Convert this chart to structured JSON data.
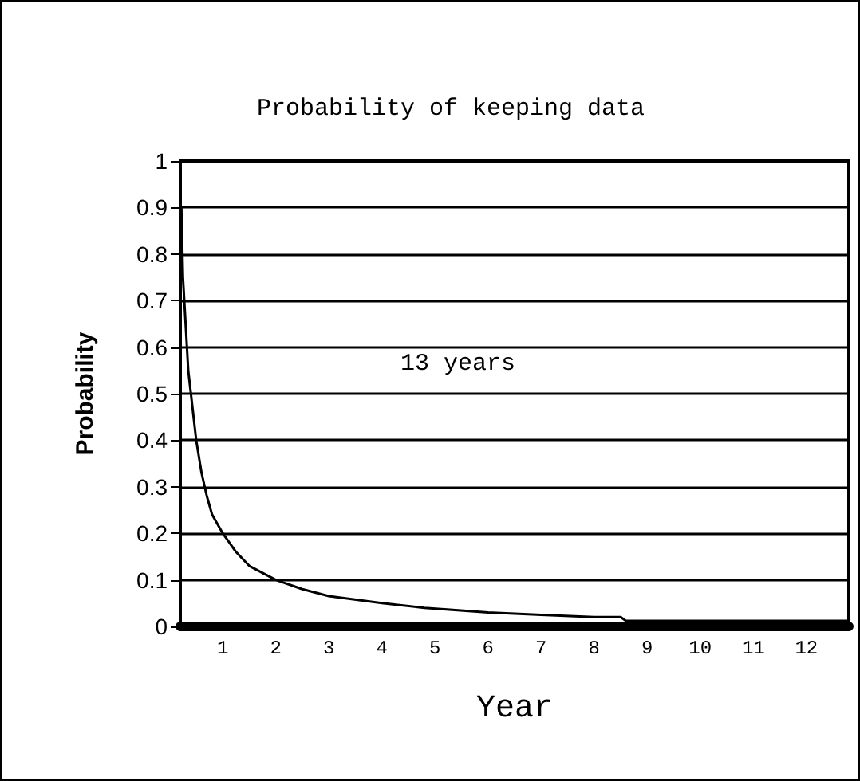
{
  "chart_data": {
    "type": "line",
    "title": "Probability of keeping data",
    "xlabel": "Year",
    "ylabel": "Probability",
    "annotations": [
      "13 years"
    ],
    "x": [
      0.22,
      0.25,
      0.3,
      0.35,
      0.4,
      0.5,
      0.6,
      0.7,
      0.8,
      1,
      1.25,
      1.5,
      2,
      2.5,
      3,
      4,
      4.8,
      6,
      7,
      8,
      8.5,
      8.6,
      12.8
    ],
    "series": [
      {
        "color": "#000000",
        "values": [
          0.9,
          0.75,
          0.65,
          0.55,
          0.5,
          0.4,
          0.33,
          0.28,
          0.24,
          0.2,
          0.16,
          0.13,
          0.1,
          0.08,
          0.065,
          0.05,
          0.04,
          0.03,
          0.025,
          0.02,
          0.02,
          0.012,
          0.012
        ]
      }
    ],
    "xlim": [
      0.2,
      12.8
    ],
    "xticks": [
      1,
      2,
      3,
      4,
      5,
      6,
      7,
      8,
      9,
      10,
      11,
      12
    ],
    "ylim": [
      0,
      1
    ],
    "yticks": [
      0,
      0.1,
      0.2,
      0.3,
      0.4,
      0.5,
      0.6,
      0.7,
      0.8,
      0.9,
      1
    ],
    "grid": "y",
    "marker": "none",
    "line_style": "solid"
  }
}
